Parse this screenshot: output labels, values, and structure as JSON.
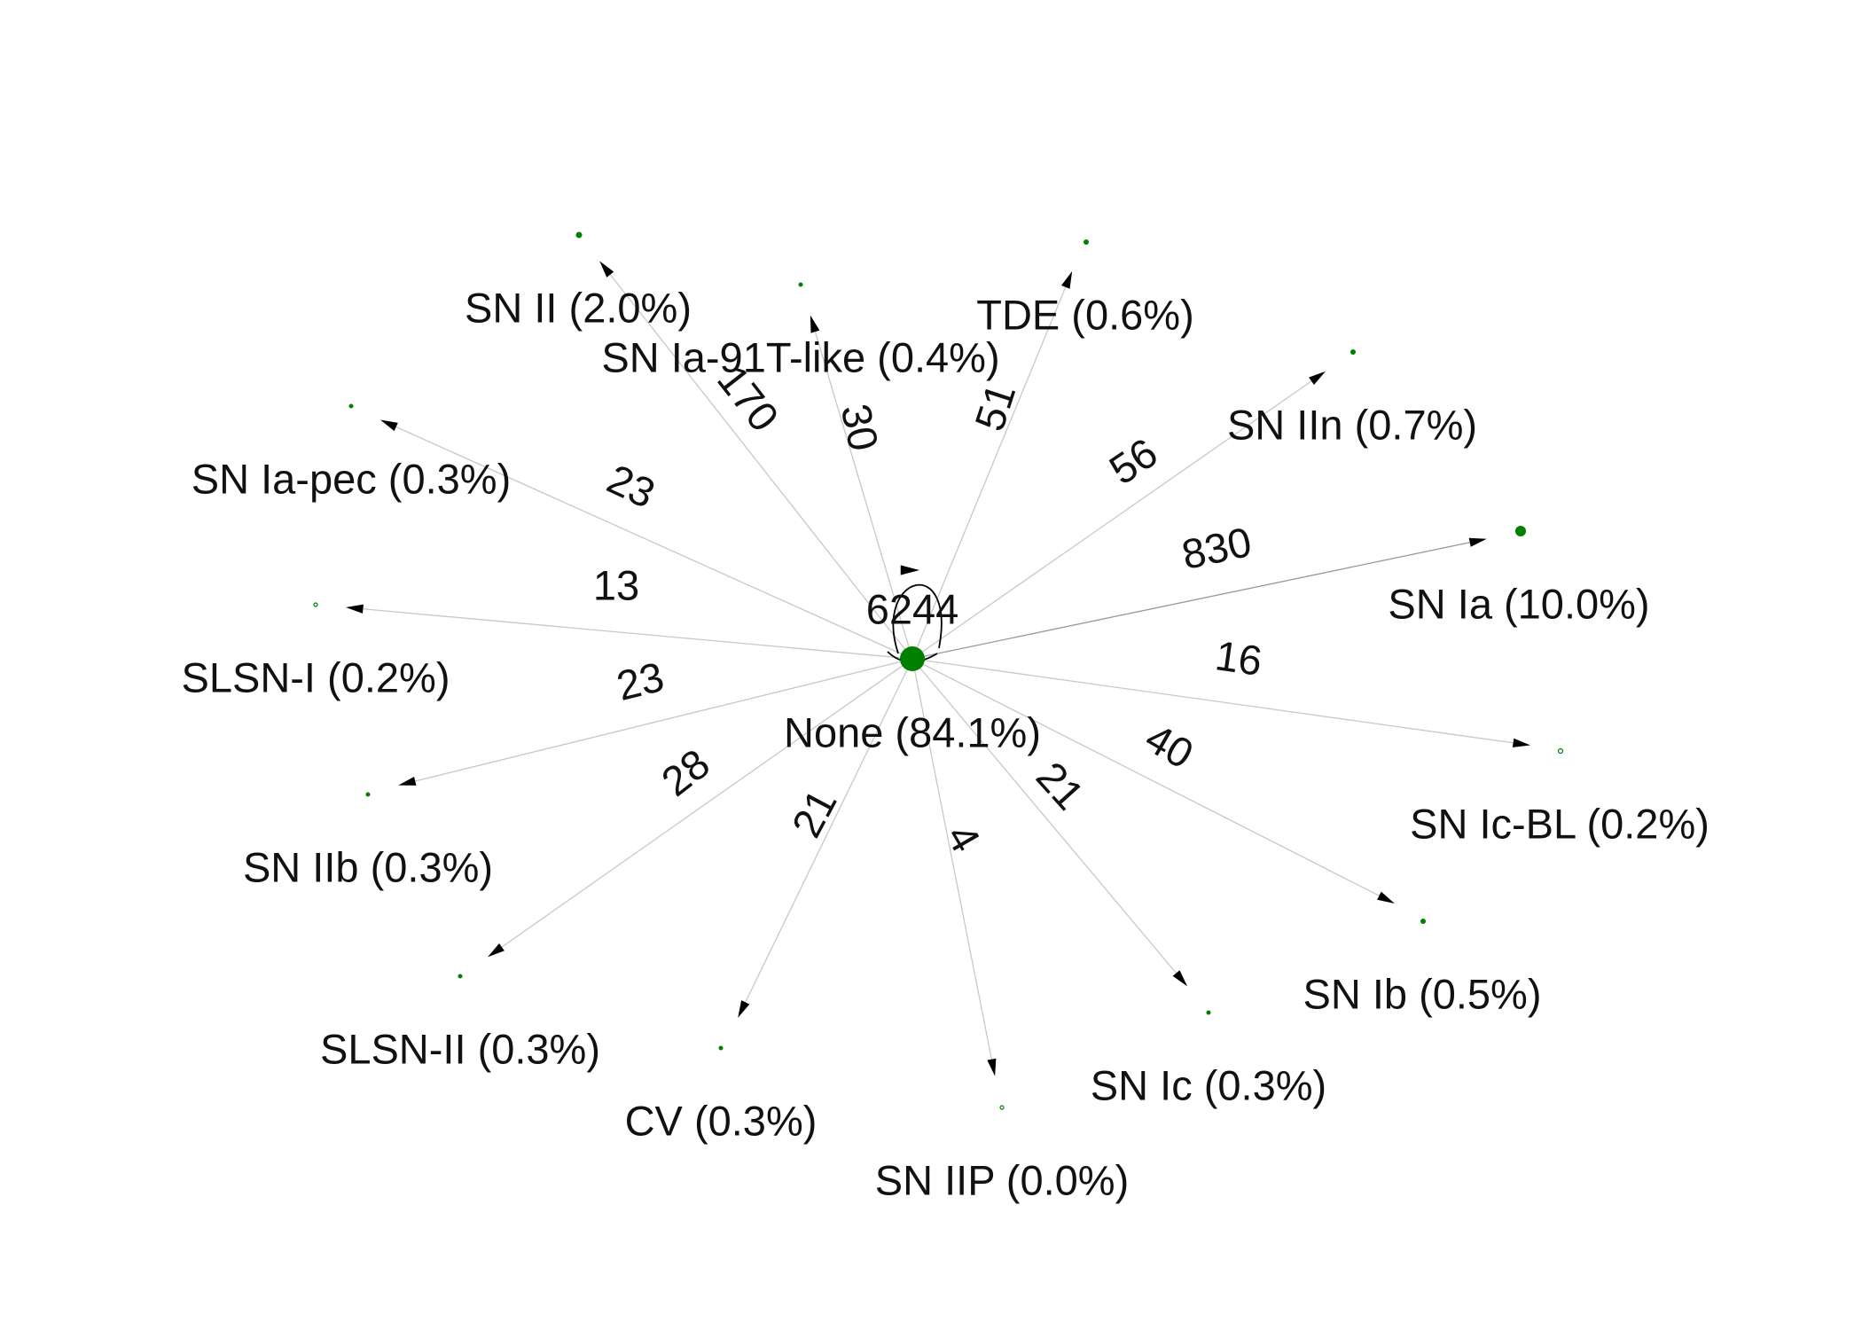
{
  "colors": {
    "node": "#008000",
    "edge": "#c8c8c8",
    "arrow": "#000000",
    "text": "#111111"
  },
  "graph": {
    "center": {
      "id": "none",
      "label": "None (84.1%)",
      "self_loop_count": "6244"
    },
    "nodes": [
      {
        "id": "sn_ia",
        "label": "SN Ia (10.0%)"
      },
      {
        "id": "sn_ii",
        "label": "SN II (2.0%)"
      },
      {
        "id": "sn_ia_91t",
        "label": "SN Ia-91T-like (0.4%)"
      },
      {
        "id": "tde",
        "label": "TDE (0.6%)"
      },
      {
        "id": "sn_iin",
        "label": "SN IIn (0.7%)"
      },
      {
        "id": "sn_ia_pec",
        "label": "SN Ia-pec (0.3%)"
      },
      {
        "id": "slsn_i",
        "label": "SLSN-I (0.2%)"
      },
      {
        "id": "sn_iib",
        "label": "SN IIb (0.3%)"
      },
      {
        "id": "slsn_ii",
        "label": "SLSN-II (0.3%)"
      },
      {
        "id": "cv",
        "label": "CV (0.3%)"
      },
      {
        "id": "sn_iip",
        "label": "SN IIP (0.0%)"
      },
      {
        "id": "sn_ic",
        "label": "SN Ic (0.3%)"
      },
      {
        "id": "sn_ib",
        "label": "SN Ib (0.5%)"
      },
      {
        "id": "sn_ic_bl",
        "label": "SN Ic-BL (0.2%)"
      }
    ],
    "edges": [
      {
        "from": "none",
        "to": "sn_ia",
        "count": "830"
      },
      {
        "from": "none",
        "to": "sn_ii",
        "count": "170"
      },
      {
        "from": "none",
        "to": "sn_ia_91t",
        "count": "30"
      },
      {
        "from": "none",
        "to": "tde",
        "count": "51"
      },
      {
        "from": "none",
        "to": "sn_iin",
        "count": "56"
      },
      {
        "from": "none",
        "to": "sn_ia_pec",
        "count": "23"
      },
      {
        "from": "none",
        "to": "slsn_i",
        "count": "13"
      },
      {
        "from": "none",
        "to": "sn_iib",
        "count": "23"
      },
      {
        "from": "none",
        "to": "slsn_ii",
        "count": "28"
      },
      {
        "from": "none",
        "to": "cv",
        "count": "21"
      },
      {
        "from": "none",
        "to": "sn_iip",
        "count": "4"
      },
      {
        "from": "none",
        "to": "sn_ic",
        "count": "21"
      },
      {
        "from": "none",
        "to": "sn_ib",
        "count": "40"
      },
      {
        "from": "none",
        "to": "sn_ic_bl",
        "count": "16"
      }
    ]
  }
}
